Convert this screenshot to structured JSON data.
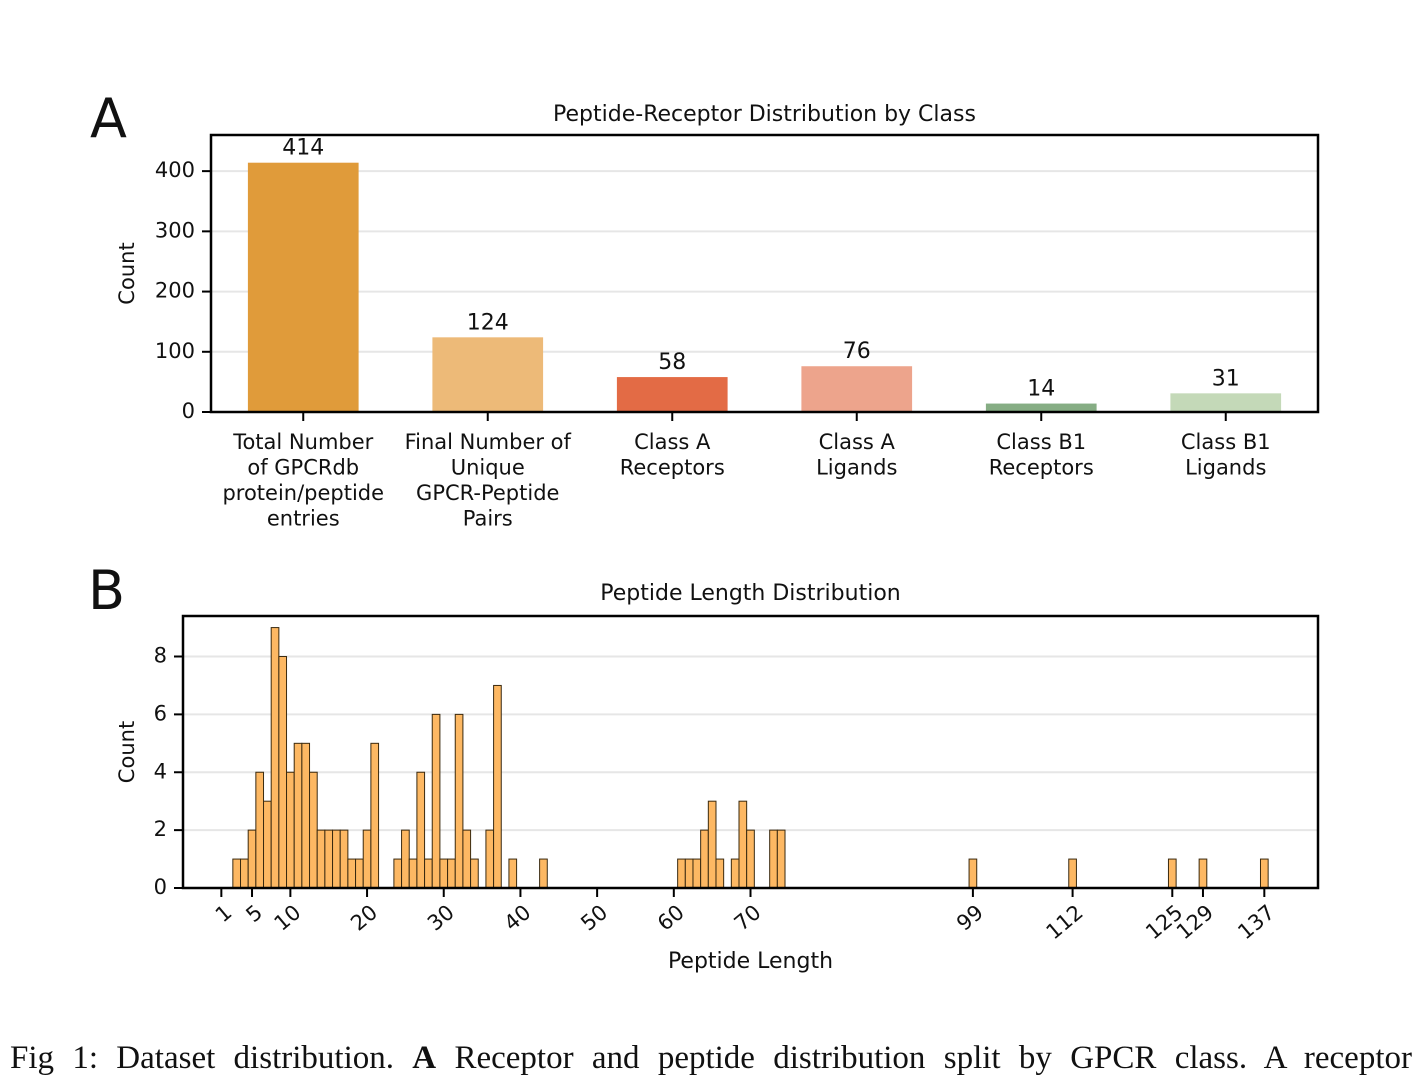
{
  "chart_data": [
    {
      "type": "bar",
      "panel_label": "A",
      "title": "Peptide-Receptor Distribution by Class",
      "ylabel": "Count",
      "categories": [
        "Total Number\nof GPCRdb\nprotein/peptide\nentries",
        "Final Number of\nUnique\nGPCR-Peptide\nPairs",
        "Class A\nReceptors",
        "Class A\nLigands",
        "Class B1\nReceptors",
        "Class B1\nLigands"
      ],
      "values": [
        414,
        124,
        58,
        76,
        14,
        31
      ],
      "colors": [
        "#e09b3a",
        "#edba78",
        "#e36b45",
        "#eda48c",
        "#86ad84",
        "#c4d9b8"
      ],
      "ylim": [
        0,
        460
      ],
      "yticks": [
        0,
        100,
        200,
        300,
        400
      ],
      "grid": true
    },
    {
      "type": "histogram",
      "panel_label": "B",
      "title": "Peptide Length Distribution",
      "xlabel": "Peptide Length",
      "ylabel": "Count",
      "bins": [
        2.5,
        3.5,
        4.5,
        5.5,
        6.5,
        7.5,
        8.5,
        9.5,
        10.5,
        11.5,
        12.5,
        13.5,
        14.5,
        15.5,
        16.5,
        17.5,
        18.5,
        19.5,
        20.5,
        21.5,
        22.5,
        23.5,
        24.5,
        25.5,
        26.5,
        27.5,
        28.5,
        29.5,
        30.5,
        31.5,
        32.5,
        33.5,
        34.5,
        35.5,
        36.5,
        37.5,
        38.5,
        39.5,
        40.5,
        41.5,
        42.5,
        43.5,
        44.5,
        45.5,
        46.5,
        47.5,
        48.5,
        49.5,
        50.5,
        51.5,
        52.5,
        53.5,
        54.5,
        55.5,
        56.5,
        57.5,
        58.5,
        59.5,
        60.5,
        61.5,
        62.5,
        63.5,
        64.5,
        65.5,
        66.5,
        67.5,
        68.5,
        69.5,
        70.5,
        71.5,
        72.5,
        73.5,
        74.5,
        75.5,
        76.5,
        77.5,
        78.5,
        79.5,
        80.5,
        81.5,
        82.5,
        83.5,
        84.5,
        85.5,
        86.5,
        87.5,
        88.5,
        89.5,
        90.5,
        91.5,
        92.5,
        93.5,
        94.5,
        95.5,
        96.5,
        97.5,
        98.5,
        99.5,
        100.5,
        101.5,
        102.5,
        103.5,
        104.5,
        105.5,
        106.5,
        107.5,
        108.5,
        109.5,
        110.5,
        111.5,
        112.5,
        113.5,
        114.5,
        115.5,
        116.5,
        117.5,
        118.5,
        119.5,
        120.5,
        121.5,
        122.5,
        123.5,
        124.5,
        125.5,
        126.5,
        127.5,
        128.5,
        129.5,
        130.5,
        131.5,
        132.5,
        133.5,
        134.5,
        135.5,
        136.5,
        137.5
      ],
      "values": [
        1,
        1,
        2,
        4,
        3,
        9,
        8,
        4,
        5,
        5,
        4,
        2,
        2,
        2,
        2,
        1,
        1,
        2,
        5,
        0,
        0,
        1,
        2,
        1,
        4,
        1,
        6,
        1,
        1,
        6,
        2,
        1,
        0,
        2,
        7,
        0,
        1,
        0,
        0,
        0,
        1,
        0,
        0,
        0,
        0,
        0,
        0,
        0,
        0,
        0,
        0,
        0,
        0,
        0,
        0,
        0,
        0,
        0,
        1,
        1,
        1,
        2,
        3,
        1,
        0,
        1,
        3,
        2,
        0,
        0,
        2,
        2,
        0,
        0,
        0,
        0,
        0,
        0,
        0,
        0,
        0,
        0,
        0,
        0,
        0,
        0,
        0,
        0,
        0,
        0,
        0,
        0,
        0,
        0,
        0,
        0,
        1,
        0,
        0,
        0,
        0,
        0,
        0,
        0,
        0,
        0,
        0,
        0,
        0,
        1,
        0,
        0,
        0,
        0,
        0,
        0,
        0,
        0,
        0,
        0,
        0,
        0,
        1,
        0,
        0,
        0,
        1,
        0,
        0,
        0,
        0,
        0,
        0,
        0,
        1
      ],
      "color": "#fdb863",
      "edgecolor": "#3a2a10",
      "xlim": [
        -4,
        144
      ],
      "xticks": [
        1,
        5,
        10,
        20,
        30,
        40,
        50,
        60,
        70,
        99,
        112,
        125,
        129,
        137
      ],
      "ylim": [
        0,
        9.4
      ],
      "yticks": [
        0,
        2,
        4,
        6,
        8
      ],
      "grid": true
    }
  ],
  "caption": {
    "before": "Fig 1: Dataset distribution. ",
    "bold": "A",
    "after": " Receptor and peptide distribution split by GPCR class. A receptor"
  }
}
